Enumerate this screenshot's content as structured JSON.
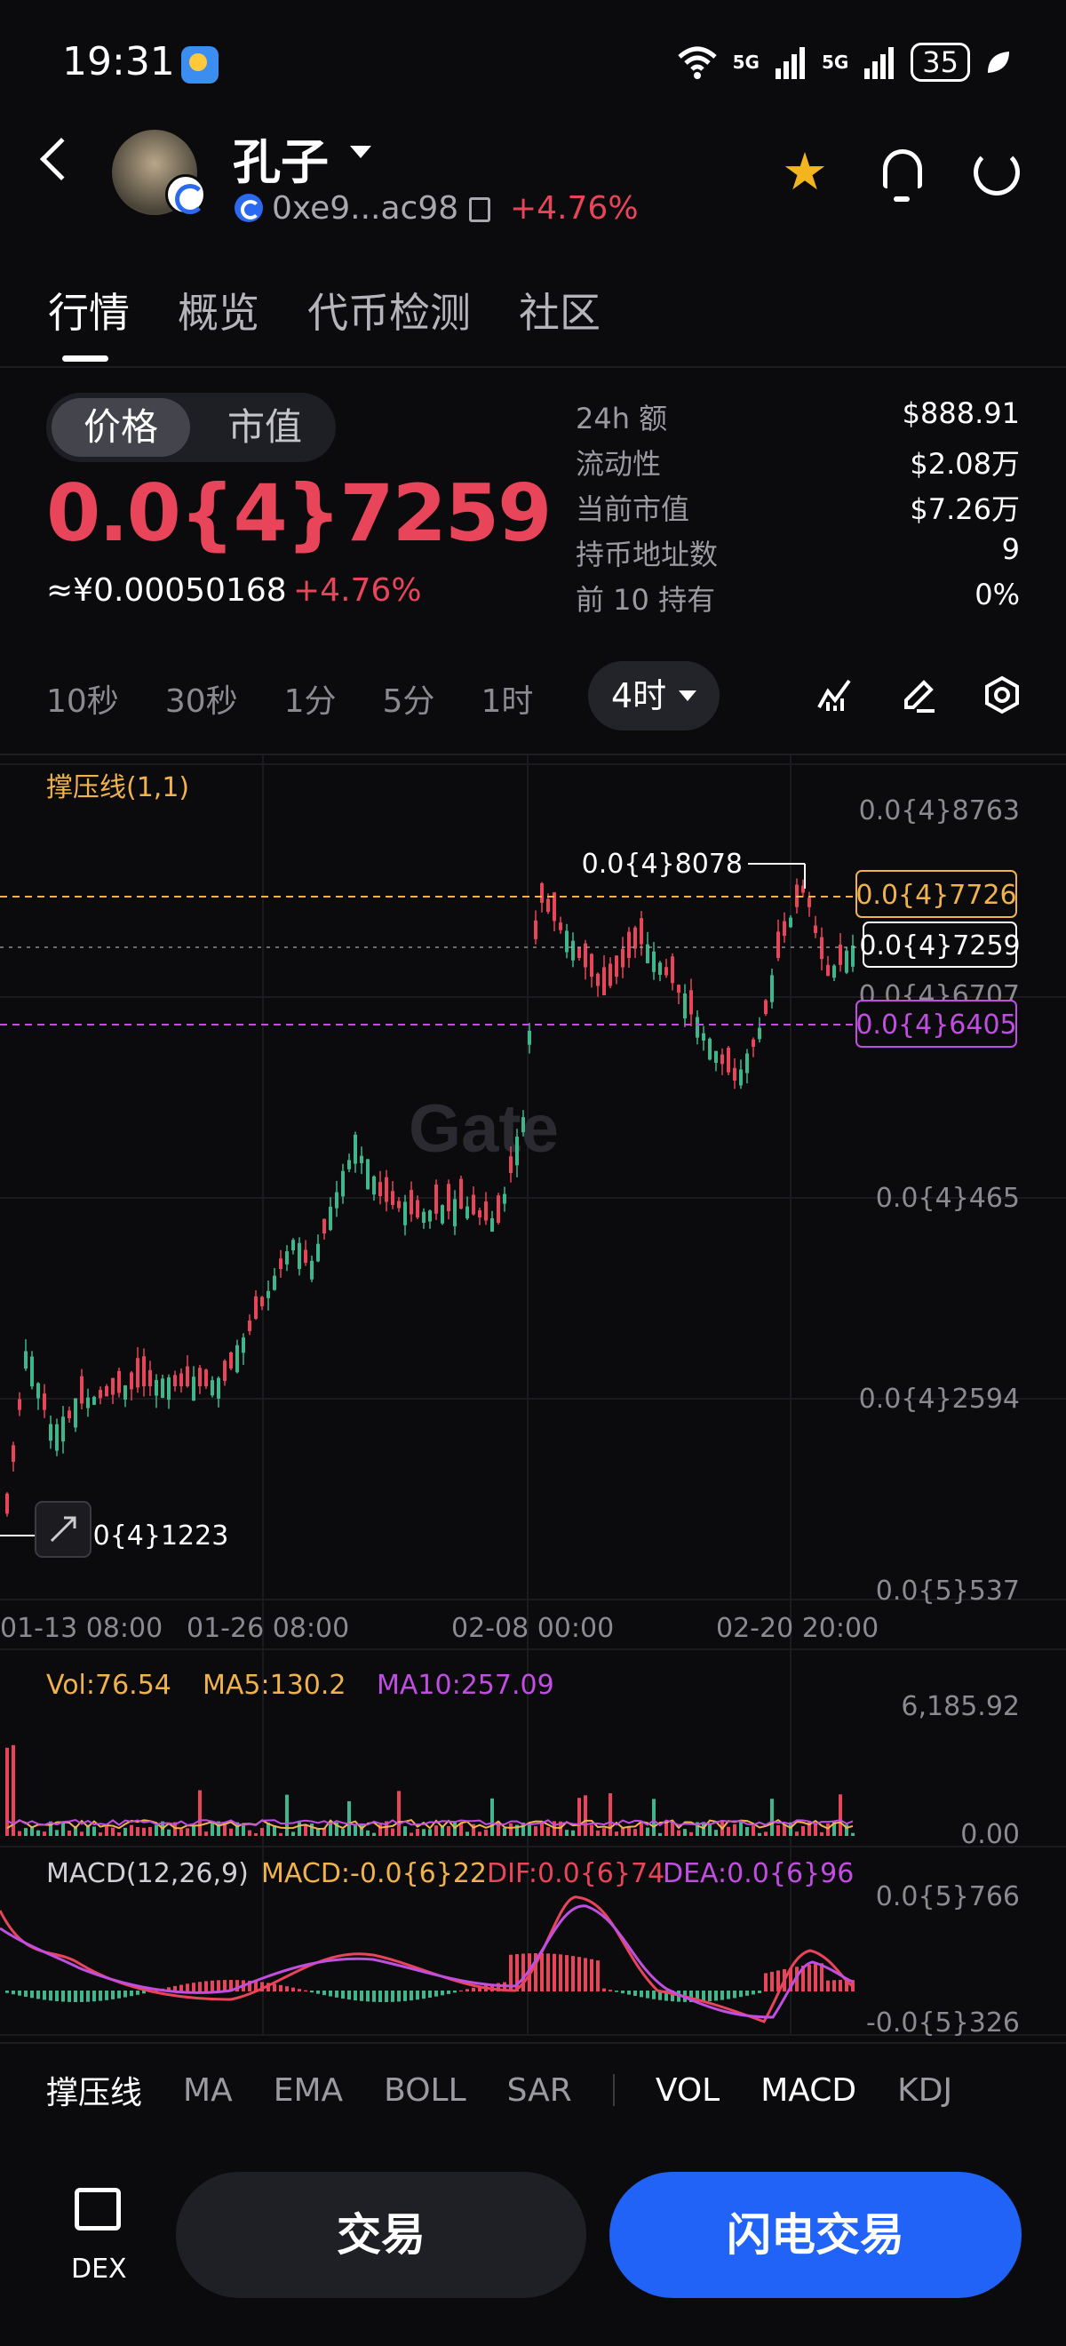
{
  "status_bar": {
    "time": "19:31",
    "signal1": "5G",
    "signal2": "5G",
    "battery": "35"
  },
  "header": {
    "token_name": "孔子",
    "address": "0xe9...ac98",
    "change": "+4.76%"
  },
  "tabs": [
    "行情",
    "概览",
    "代币检测",
    "社区"
  ],
  "price_toggle": {
    "active": "价格",
    "inactive": "市值"
  },
  "price": {
    "value": "0.0{4}7259",
    "cny": "≈¥0.00050168",
    "change": "+4.76%"
  },
  "stats": [
    {
      "label": "24h  额",
      "value": "$888.91"
    },
    {
      "label": "流动性",
      "value": "$2.08万"
    },
    {
      "label": "当前市值",
      "value": "$7.26万"
    },
    {
      "label": "持币地址数",
      "value": "9"
    },
    {
      "label": "前 10 持有",
      "value": "0%"
    }
  ],
  "intervals": {
    "items": [
      "10秒",
      "30秒",
      "1分",
      "5分",
      "1时"
    ],
    "active": "4时"
  },
  "main_chart": {
    "indicator_label": "撑压线(1,1)",
    "y_labels": [
      "0.0{4}8763",
      "0.0{4}6707",
      "0.0{4}465",
      "0.0{4}2594",
      "0.0{5}537"
    ],
    "x_labels": [
      "01-13 08:00",
      "01-26 08:00",
      "02-08 00:00",
      "02-20 20:00"
    ],
    "high_label": "0.0{4}8078",
    "low_label": "0.0{4}1223",
    "resistance": "0.0{4}7726",
    "current": "0.0{4}7259",
    "support": "0.0{4}6405",
    "watermark": "Gate"
  },
  "volume": {
    "vol": "Vol:76.54",
    "ma5": "MA5:130.2",
    "ma10": "MA10:257.09",
    "y_max": "6,185.92",
    "y_min": "0.00"
  },
  "macd": {
    "title": "MACD(12,26,9)",
    "macd": "MACD:-0.0{6}22",
    "dif": "DIF:0.0{6}74",
    "dea": "DEA:0.0{6}96",
    "y_max": "0.0{5}766",
    "y_min": "-0.0{5}326"
  },
  "indicators": {
    "main": [
      "撑压线",
      "MA",
      "EMA",
      "BOLL",
      "SAR"
    ],
    "sub": [
      "VOL",
      "MACD",
      "KDJ"
    ],
    "active_main": "撑压线"
  },
  "bottom": {
    "dex_label": "DEX",
    "trade": "交易",
    "flash_trade": "闪电交易"
  },
  "colors": {
    "up": "#e8455a",
    "down": "#3fb68b",
    "accent": "#2163f6",
    "star": "#f3b51e",
    "ma5": "#f0b24c",
    "ma10": "#c04ee0"
  }
}
